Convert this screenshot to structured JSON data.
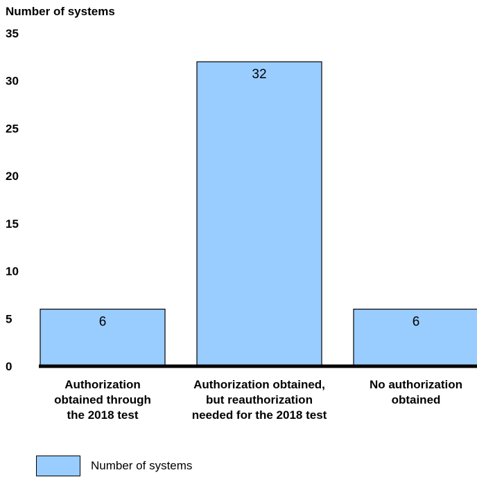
{
  "chart_data": {
    "type": "bar",
    "title": "",
    "ylabel": "Number of systems",
    "xlabel": "",
    "ylim": [
      0,
      35
    ],
    "yticks": [
      0,
      5,
      10,
      15,
      20,
      25,
      30,
      35
    ],
    "categories": [
      [
        "Authorization",
        "obtained through",
        "the 2018 test"
      ],
      [
        "Authorization obtained,",
        "but reauthorization",
        "needed for the 2018 test"
      ],
      [
        "No authorization",
        "obtained"
      ]
    ],
    "series": [
      {
        "name": "Number of systems",
        "values": [
          6,
          32,
          6
        ],
        "color": "#99ccff"
      }
    ],
    "data_labels": [
      "6",
      "32",
      "6"
    ],
    "legend": {
      "position": "bottom-left",
      "entries": [
        "Number of systems"
      ]
    },
    "grid": false
  }
}
